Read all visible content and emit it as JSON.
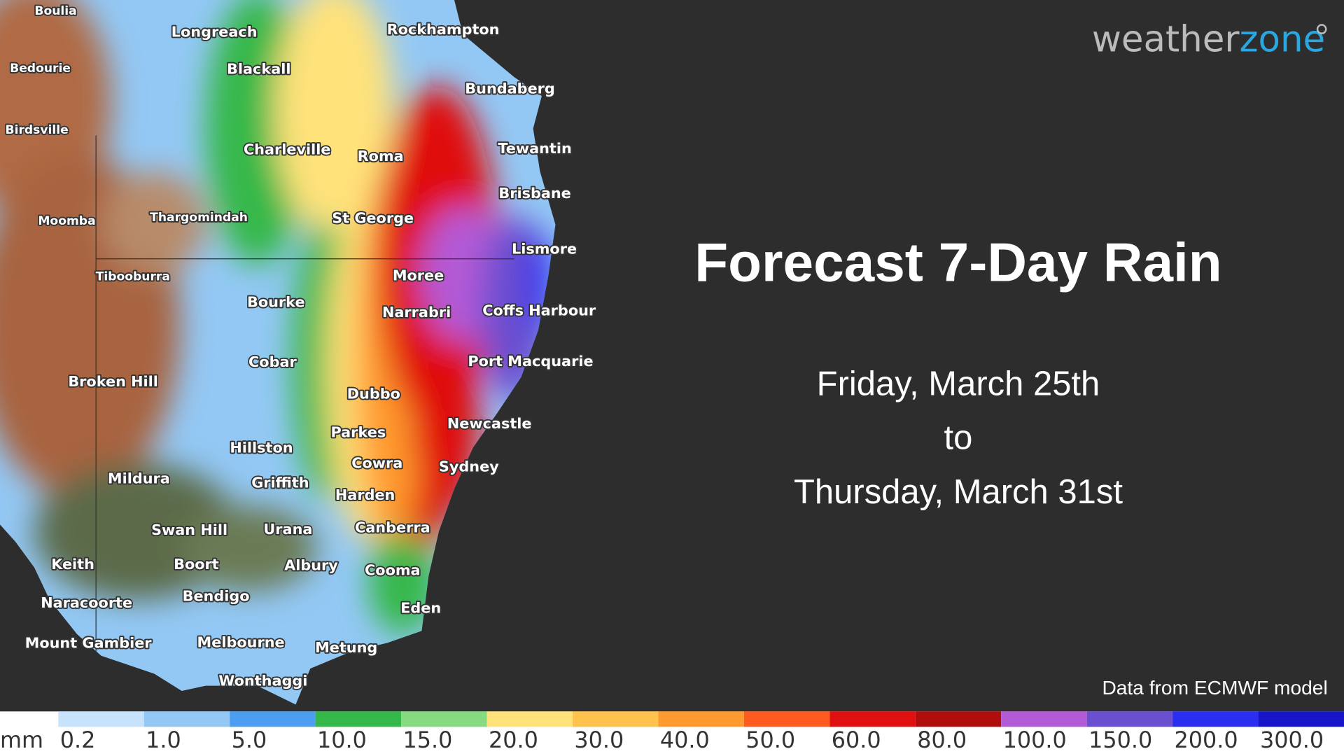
{
  "brand": {
    "part1": "weather",
    "part2": "zone"
  },
  "title": "Forecast 7-Day Rain",
  "date_from": "Friday, March 25th",
  "date_joiner": "to",
  "date_to": "Thursday, March 31st",
  "credit": "Data from ECMWF model",
  "places": [
    "Boulia",
    "Longreach",
    "Rockhampton",
    "Bedourie",
    "Blackall",
    "Bundaberg",
    "Birdsville",
    "Charleville",
    "Roma",
    "Tewantin",
    "Brisbane",
    "Moomba",
    "Thargomindah",
    "St George",
    "Lismore",
    "Tibooburra",
    "Moree",
    "Bourke",
    "Narrabri",
    "Coffs Harbour",
    "Cobar",
    "Port Macquarie",
    "Broken Hill",
    "Dubbo",
    "Newcastle",
    "Parkes",
    "Hillston",
    "Cowra",
    "Sydney",
    "Mildura",
    "Griffith",
    "Harden",
    "Swan Hill",
    "Urana",
    "Canberra",
    "Keith",
    "Boort",
    "Albury",
    "Cooma",
    "Naracoorte",
    "Bendigo",
    "Eden",
    "Mount Gambier",
    "Melbourne",
    "Metung",
    "Wonthaggi"
  ],
  "legend": {
    "unit": "mm",
    "steps": [
      {
        "label": "0.2",
        "color": "#c6e3fb"
      },
      {
        "label": "1.0",
        "color": "#93c8f5"
      },
      {
        "label": "5.0",
        "color": "#4c9ff0"
      },
      {
        "label": "10.0",
        "color": "#35b84a"
      },
      {
        "label": "15.0",
        "color": "#86da7f"
      },
      {
        "label": "20.0",
        "color": "#ffe27a"
      },
      {
        "label": "30.0",
        "color": "#ffc34d"
      },
      {
        "label": "40.0",
        "color": "#ff9a2e"
      },
      {
        "label": "50.0",
        "color": "#ff5a1f"
      },
      {
        "label": "60.0",
        "color": "#e01010"
      },
      {
        "label": "80.0",
        "color": "#b00d0d"
      },
      {
        "label": "100.0",
        "color": "#b35ad6"
      },
      {
        "label": "150.0",
        "color": "#6a4fd0"
      },
      {
        "label": "200.0",
        "color": "#2a2ef0"
      },
      {
        "label": "300.0",
        "color": "#1616c8"
      }
    ]
  }
}
